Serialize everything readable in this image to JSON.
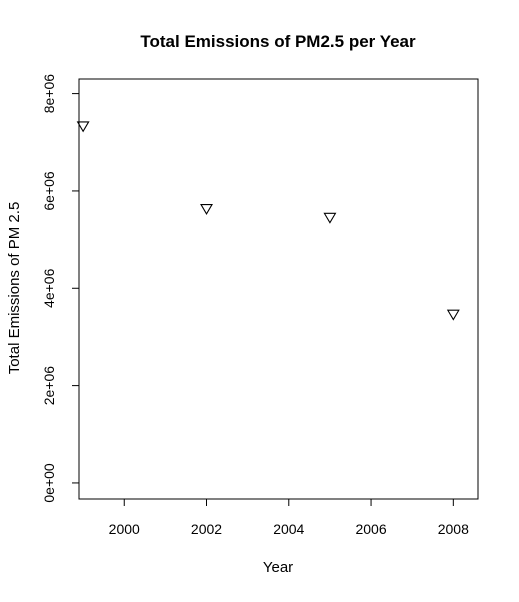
{
  "chart_data": {
    "type": "scatter",
    "title": "Total Emissions of PM2.5 per Year",
    "xlabel": "Year",
    "ylabel": "Total Emissions of PM 2.5",
    "xlim": [
      1998.9,
      2008.6
    ],
    "ylim": [
      -330000,
      8300000
    ],
    "x_ticks": [
      2000,
      2002,
      2004,
      2006,
      2008
    ],
    "x_tick_labels": [
      "2000",
      "2002",
      "2004",
      "2006",
      "2008"
    ],
    "y_ticks": [
      0,
      2000000,
      4000000,
      6000000,
      8000000
    ],
    "y_tick_labels": [
      "0e+00",
      "2e+06",
      "4e+06",
      "6e+06",
      "8e+06"
    ],
    "marker": "open-triangle-down",
    "marker_color": "#000000",
    "grid": false,
    "points": [
      {
        "x": 1999,
        "y": 7332967
      },
      {
        "x": 2002,
        "y": 5635780
      },
      {
        "x": 2005,
        "y": 5454703
      },
      {
        "x": 2008,
        "y": 3464206
      }
    ]
  }
}
